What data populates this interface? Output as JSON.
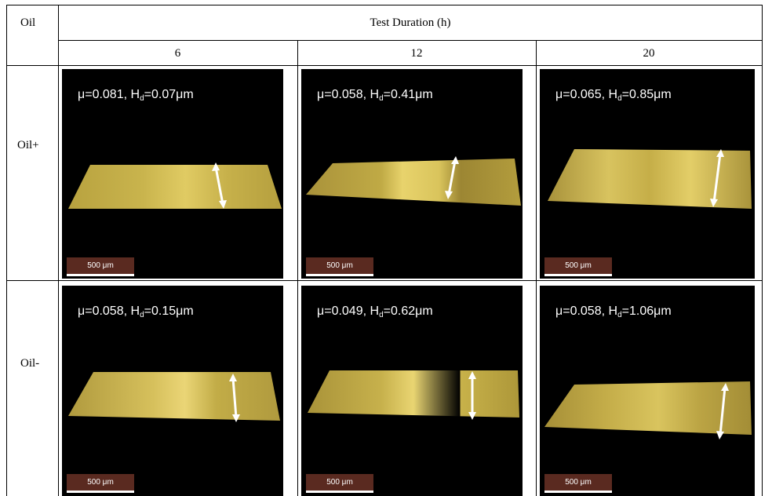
{
  "header": {
    "oil_label": "Oil",
    "duration_label": "Test Duration (h)",
    "durations": [
      "6",
      "12",
      "20"
    ]
  },
  "rows": [
    {
      "label": "Oil+",
      "cells": [
        {
          "mu": "0.081",
          "hd": "0.07μm",
          "scale": "500 μm"
        },
        {
          "mu": "0.058",
          "hd": "0.41μm",
          "scale": "500 μm"
        },
        {
          "mu": "0.065",
          "hd": "0.85μm",
          "scale": "500 μm"
        }
      ]
    },
    {
      "label": "Oil-",
      "cells": [
        {
          "mu": "0.058",
          "hd": "0.15μm",
          "scale": "500 μm"
        },
        {
          "mu": "0.049",
          "hd": "0.62μm",
          "scale": "500 μm"
        },
        {
          "mu": "0.058",
          "hd": "1.06μm",
          "scale": "500 μm"
        }
      ]
    }
  ],
  "colors": {
    "surface": "#c9b24a",
    "surface_light": "#e2cf6e",
    "background": "#000000",
    "scale_bar": "#5a2a20"
  }
}
